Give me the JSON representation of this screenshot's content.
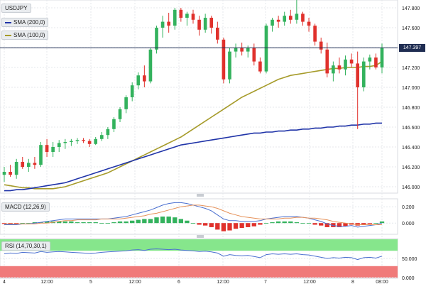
{
  "symbol": "USDJPY",
  "legend": {
    "sma200": "SMA (200,0)",
    "sma100": "SMA (100,0)",
    "macd": "MACD (12,26,9)",
    "rsi": "RSI (14,70,30,1)"
  },
  "current_price": "147.397",
  "colors": {
    "up": "#33b25d",
    "down": "#e0312c",
    "sma200": "#2034a8",
    "sma100": "#a69b2a",
    "macd": "#4a6fd0",
    "signal": "#e6925a",
    "rsi": "#4a6fd0",
    "overbought": "#86e68c",
    "oversold": "#f07a7a",
    "price_line": "#1f2d52"
  },
  "chart_data": [
    {
      "type": "candlestick",
      "name": "USDJPY",
      "x_ticks": [
        "4",
        "12:00",
        "5",
        "12:00",
        "6",
        "12:00",
        "7",
        "12:00",
        "8",
        "08:00"
      ],
      "y_ticks": [
        "147.800",
        "147.600",
        "147.400",
        "147.200",
        "147.000",
        "146.800",
        "146.600",
        "146.400",
        "146.200",
        "146.000"
      ],
      "ylim": [
        145.95,
        147.85
      ],
      "ohlc": [
        [
          146.12,
          146.2,
          146.05,
          146.15
        ],
        [
          146.15,
          146.22,
          146.1,
          146.12
        ],
        [
          146.12,
          146.28,
          146.08,
          146.25
        ],
        [
          146.25,
          146.3,
          146.18,
          146.2
        ],
        [
          146.2,
          146.28,
          146.15,
          146.24
        ],
        [
          146.24,
          146.3,
          146.18,
          146.22
        ],
        [
          146.22,
          146.45,
          146.2,
          146.42
        ],
        [
          146.42,
          146.48,
          146.3,
          146.35
        ],
        [
          146.35,
          146.45,
          146.3,
          146.4
        ],
        [
          146.4,
          146.47,
          146.35,
          146.44
        ],
        [
          146.44,
          146.48,
          146.38,
          146.45
        ],
        [
          146.45,
          146.48,
          146.41,
          146.46
        ],
        [
          146.46,
          146.49,
          146.43,
          146.47
        ],
        [
          146.47,
          146.49,
          146.44,
          146.46
        ],
        [
          146.46,
          146.48,
          146.4,
          146.43
        ],
        [
          146.43,
          146.5,
          146.42,
          146.48
        ],
        [
          146.48,
          146.55,
          146.46,
          146.52
        ],
        [
          146.52,
          146.6,
          146.48,
          146.58
        ],
        [
          146.58,
          146.7,
          146.55,
          146.68
        ],
        [
          146.68,
          146.8,
          146.65,
          146.78
        ],
        [
          146.78,
          146.92,
          146.74,
          146.9
        ],
        [
          146.9,
          147.05,
          146.86,
          147.02
        ],
        [
          147.02,
          147.15,
          146.98,
          147.12
        ],
        [
          147.12,
          147.22,
          147.0,
          147.06
        ],
        [
          147.06,
          147.4,
          147.04,
          147.38
        ],
        [
          147.38,
          147.62,
          147.34,
          147.6
        ],
        [
          147.6,
          147.72,
          147.5,
          147.66
        ],
        [
          147.66,
          147.75,
          147.55,
          147.62
        ],
        [
          147.62,
          147.8,
          147.58,
          147.78
        ],
        [
          147.78,
          147.8,
          147.66,
          147.7
        ],
        [
          147.7,
          147.76,
          147.62,
          147.74
        ],
        [
          147.74,
          147.78,
          147.64,
          147.68
        ],
        [
          147.68,
          147.72,
          147.52,
          147.58
        ],
        [
          147.58,
          147.74,
          147.55,
          147.7
        ],
        [
          147.7,
          147.72,
          147.54,
          147.6
        ],
        [
          147.6,
          147.66,
          147.44,
          147.48
        ],
        [
          147.48,
          147.5,
          147.04,
          147.08
        ],
        [
          147.08,
          147.4,
          147.04,
          147.36
        ],
        [
          147.36,
          147.44,
          147.3,
          147.4
        ],
        [
          147.4,
          147.45,
          147.32,
          147.36
        ],
        [
          147.36,
          147.42,
          147.3,
          147.4
        ],
        [
          147.4,
          147.44,
          147.22,
          147.26
        ],
        [
          147.26,
          147.3,
          147.14,
          147.16
        ],
        [
          147.16,
          147.64,
          147.14,
          147.62
        ],
        [
          147.62,
          147.7,
          147.56,
          147.68
        ],
        [
          147.68,
          147.72,
          147.6,
          147.66
        ],
        [
          147.66,
          147.76,
          147.62,
          147.72
        ],
        [
          147.72,
          147.78,
          147.64,
          147.68
        ],
        [
          147.68,
          147.88,
          147.64,
          147.74
        ],
        [
          147.74,
          147.76,
          147.62,
          147.66
        ],
        [
          147.66,
          147.7,
          147.56,
          147.62
        ],
        [
          147.62,
          147.64,
          147.42,
          147.46
        ],
        [
          147.46,
          147.5,
          147.34,
          147.38
        ],
        [
          147.38,
          147.45,
          147.1,
          147.14
        ],
        [
          147.14,
          147.26,
          147.06,
          147.22
        ],
        [
          147.22,
          147.3,
          147.14,
          147.18
        ],
        [
          147.18,
          147.32,
          147.12,
          147.28
        ],
        [
          147.28,
          147.34,
          147.2,
          147.24
        ],
        [
          147.24,
          147.36,
          146.58,
          147.0
        ],
        [
          147.0,
          147.3,
          146.96,
          147.26
        ],
        [
          147.26,
          147.33,
          147.18,
          147.3
        ],
        [
          147.3,
          147.34,
          147.18,
          147.2
        ],
        [
          147.2,
          147.44,
          147.14,
          147.4
        ]
      ],
      "series": [
        {
          "name": "SMA (100,0)",
          "values": [
            146.02,
            146.01,
            146.0,
            145.99,
            145.99,
            145.98,
            145.98,
            145.98,
            145.98,
            145.99,
            146.0,
            146.02,
            146.04,
            146.06,
            146.08,
            146.1,
            146.12,
            146.14,
            146.17,
            146.2,
            146.23,
            146.26,
            146.29,
            146.32,
            146.35,
            146.38,
            146.41,
            146.44,
            146.47,
            146.5,
            146.54,
            146.58,
            146.62,
            146.66,
            146.7,
            146.74,
            146.78,
            146.82,
            146.86,
            146.9,
            146.93,
            146.96,
            146.99,
            147.02,
            147.05,
            147.08,
            147.1,
            147.12,
            147.13,
            147.14,
            147.15,
            147.16,
            147.17,
            147.18,
            147.19,
            147.19,
            147.2,
            147.2,
            147.2,
            147.21,
            147.21,
            147.22,
            147.26
          ]
        },
        {
          "name": "SMA (200,0)",
          "values": [
            145.96,
            145.96,
            145.97,
            145.97,
            145.98,
            145.99,
            146.0,
            146.01,
            146.02,
            146.03,
            146.04,
            146.06,
            146.08,
            146.1,
            146.12,
            146.14,
            146.16,
            146.18,
            146.2,
            146.22,
            146.24,
            146.26,
            146.28,
            146.3,
            146.32,
            146.34,
            146.36,
            146.38,
            146.4,
            146.42,
            146.43,
            146.44,
            146.45,
            146.46,
            146.47,
            146.48,
            146.49,
            146.5,
            146.51,
            146.52,
            146.53,
            146.54,
            146.54,
            146.55,
            146.55,
            146.56,
            146.56,
            146.57,
            146.57,
            146.58,
            146.58,
            146.59,
            146.59,
            146.6,
            146.6,
            146.61,
            146.61,
            146.62,
            146.62,
            146.63,
            146.63,
            146.64,
            146.64
          ]
        }
      ]
    },
    {
      "type": "line",
      "name": "MACD (12,26,9)",
      "y_ticks": [
        "0.200",
        "0.000"
      ],
      "ylim": [
        -0.12,
        0.28
      ],
      "series": [
        {
          "name": "macd",
          "values": [
            -0.02,
            -0.02,
            -0.02,
            -0.01,
            -0.01,
            0.0,
            0.01,
            0.02,
            0.03,
            0.04,
            0.05,
            0.05,
            0.05,
            0.05,
            0.05,
            0.05,
            0.05,
            0.05,
            0.06,
            0.07,
            0.08,
            0.1,
            0.12,
            0.14,
            0.16,
            0.19,
            0.22,
            0.24,
            0.25,
            0.25,
            0.24,
            0.22,
            0.2,
            0.18,
            0.15,
            0.1,
            0.05,
            0.03,
            0.03,
            0.02,
            0.02,
            0.02,
            0.03,
            0.05,
            0.06,
            0.07,
            0.08,
            0.08,
            0.08,
            0.07,
            0.06,
            0.04,
            0.02,
            -0.01,
            -0.03,
            -0.04,
            -0.04,
            -0.03,
            -0.05,
            -0.04,
            -0.03,
            -0.02,
            0.0
          ]
        },
        {
          "name": "signal",
          "values": [
            -0.01,
            -0.01,
            -0.01,
            -0.01,
            -0.01,
            -0.01,
            0.0,
            0.0,
            0.01,
            0.02,
            0.03,
            0.03,
            0.04,
            0.04,
            0.04,
            0.04,
            0.05,
            0.05,
            0.05,
            0.05,
            0.06,
            0.07,
            0.08,
            0.09,
            0.11,
            0.12,
            0.14,
            0.16,
            0.18,
            0.2,
            0.21,
            0.22,
            0.22,
            0.21,
            0.2,
            0.18,
            0.15,
            0.12,
            0.1,
            0.08,
            0.07,
            0.06,
            0.05,
            0.05,
            0.05,
            0.05,
            0.06,
            0.06,
            0.07,
            0.07,
            0.06,
            0.06,
            0.05,
            0.04,
            0.02,
            0.01,
            0.0,
            -0.01,
            -0.02,
            -0.02,
            -0.02,
            -0.02,
            -0.02
          ]
        }
      ]
    },
    {
      "type": "line",
      "name": "RSI (14,70,30,1)",
      "y_ticks": [
        "50.000",
        "0.000"
      ],
      "ylim": [
        0,
        100
      ],
      "bands": {
        "overbought": 70,
        "oversold": 30
      },
      "series": [
        {
          "name": "rsi",
          "values": [
            62,
            64,
            63,
            66,
            65,
            64,
            68,
            66,
            67,
            68,
            67,
            66,
            65,
            64,
            63,
            64,
            66,
            67,
            68,
            69,
            70,
            72,
            73,
            71,
            74,
            75,
            74,
            73,
            74,
            72,
            71,
            70,
            68,
            69,
            67,
            64,
            56,
            60,
            58,
            57,
            58,
            55,
            52,
            60,
            62,
            61,
            62,
            61,
            62,
            60,
            59,
            56,
            53,
            50,
            52,
            51,
            53,
            52,
            47,
            52,
            53,
            51,
            56
          ]
        }
      ]
    }
  ]
}
